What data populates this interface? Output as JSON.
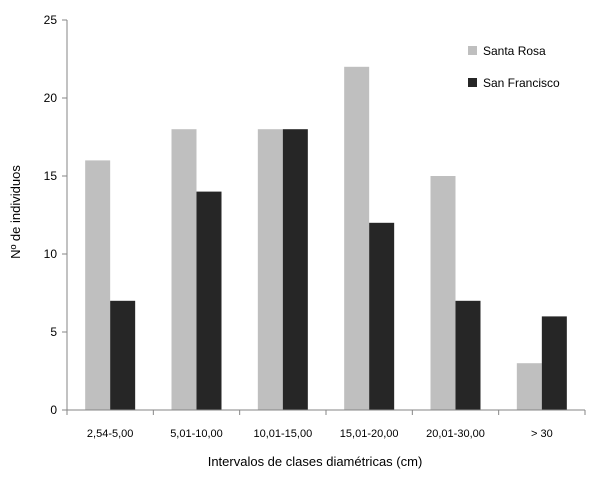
{
  "chart_data": {
    "type": "bar",
    "title": "",
    "xlabel": "Intervalos de clases diamétricas (cm)",
    "ylabel": "Nº de individuos",
    "ylim": [
      0,
      25
    ],
    "yticks": [
      0,
      5,
      10,
      15,
      20,
      25
    ],
    "grid": false,
    "legend_position": "top-right",
    "categories": [
      "2,54-5,00",
      "5,01-10,00",
      "10,01-15,00",
      "15,01-20,00",
      "20,01-30,00",
      "> 30"
    ],
    "series": [
      {
        "name": "Santa Rosa",
        "color": "#bfbfbf",
        "values": [
          16,
          18,
          18,
          22,
          15,
          3
        ]
      },
      {
        "name": "San Francisco",
        "color": "#262626",
        "values": [
          7,
          14,
          18,
          12,
          7,
          6
        ]
      }
    ]
  }
}
